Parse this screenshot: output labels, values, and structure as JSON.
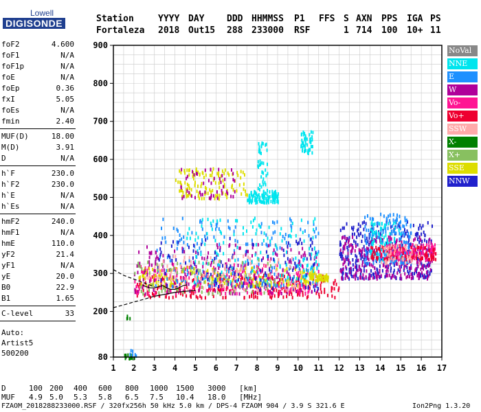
{
  "logo": {
    "top": "Lowell",
    "bottom": "DIGISONDE"
  },
  "header": {
    "row1": [
      "Station",
      "YYYY",
      "DAY",
      "DDD",
      "HHMMSS",
      "P1",
      "FFS",
      "S",
      "AXN",
      "PPS",
      "IGA",
      "PS"
    ],
    "row2": [
      "Fortaleza",
      "2018",
      "Out15",
      "288",
      "233000",
      "RSF",
      "1",
      "714",
      "100",
      "10+",
      "11"
    ]
  },
  "params": [
    [
      {
        "name": "foF2",
        "value": "4.600"
      },
      {
        "name": "foF1",
        "value": "N/A"
      },
      {
        "name": "foF1p",
        "value": "N/A"
      },
      {
        "name": "foE",
        "value": "N/A"
      },
      {
        "name": "foEp",
        "value": "0.36"
      },
      {
        "name": "fxI",
        "value": "5.05"
      },
      {
        "name": "foEs",
        "value": "N/A"
      },
      {
        "name": "fmin",
        "value": "2.40"
      }
    ],
    [
      {
        "name": "MUF(D)",
        "value": "18.00"
      },
      {
        "name": "M(D)",
        "value": "3.91"
      },
      {
        "name": "D",
        "value": "N/A"
      }
    ],
    [
      {
        "name": "h`F",
        "value": "230.0"
      },
      {
        "name": "h`F2",
        "value": "230.0"
      },
      {
        "name": "h`E",
        "value": "N/A"
      },
      {
        "name": "h`Es",
        "value": "N/A"
      }
    ],
    [
      {
        "name": "hmF2",
        "value": "240.0"
      },
      {
        "name": "hmF1",
        "value": "N/A"
      },
      {
        "name": "hmE",
        "value": "110.0"
      },
      {
        "name": "yF2",
        "value": "21.4"
      },
      {
        "name": "yF1",
        "value": "N/A"
      },
      {
        "name": "yE",
        "value": "20.0"
      },
      {
        "name": "B0",
        "value": "22.9"
      },
      {
        "name": "B1",
        "value": "1.65"
      }
    ],
    [
      {
        "name": "C-level",
        "value": "33"
      }
    ]
  ],
  "auto": [
    "Auto:",
    "Artist5",
    "500200"
  ],
  "legend": [
    {
      "label": "NoVal",
      "color": "#888888"
    },
    {
      "label": "NNE",
      "color": "#00e5ee"
    },
    {
      "label": "E",
      "color": "#1e90ff"
    },
    {
      "label": "W",
      "color": "#b0009a"
    },
    {
      "label": "Vo-",
      "color": "#ff1493"
    },
    {
      "label": "Vo+",
      "color": "#ee0030"
    },
    {
      "label": "SSW",
      "color": "#ffaaaa"
    },
    {
      "label": "X-",
      "color": "#008000"
    },
    {
      "label": "X+",
      "color": "#88c060"
    },
    {
      "label": "SSE",
      "color": "#dddd00"
    },
    {
      "label": "NNW",
      "color": "#2020cc"
    }
  ],
  "footer": {
    "d_label": "D",
    "d_values": [
      "100",
      "200",
      "400",
      "600",
      "800",
      "1000",
      "1500",
      "3000",
      "[km]"
    ],
    "muf_label": "MUF",
    "muf_values": [
      "4.9",
      "5.0",
      "5.3",
      "5.8",
      "6.5",
      "7.5",
      "10.4",
      "18.0",
      "[MHz]"
    ],
    "info": "FZAOM_2018288233000.RSF / 320fx256h 50 kHz 5.0 km / DPS-4 FZAOM 904 / 3.9 S 321.6 E",
    "version": "Ion2Png 1.3.20"
  },
  "chart_data": {
    "type": "scatter",
    "title": "",
    "xlabel": "",
    "ylabel": "",
    "xlim": [
      1,
      17
    ],
    "ylim": [
      80,
      900
    ],
    "xticks": [
      1,
      2,
      3,
      4,
      5,
      6,
      7,
      8,
      9,
      10,
      11,
      12,
      13,
      14,
      15,
      16,
      17
    ],
    "yticks": [
      80,
      200,
      300,
      400,
      500,
      600,
      700,
      800,
      900
    ],
    "grid": true,
    "clusters": [
      {
        "series": "Vo+",
        "x": [
          2,
          12
        ],
        "y": [
          240,
          300
        ],
        "n": 260
      },
      {
        "series": "Vo-",
        "x": [
          2,
          11
        ],
        "y": [
          250,
          330
        ],
        "n": 220
      },
      {
        "series": "SSE",
        "x": [
          2.2,
          11
        ],
        "y": [
          270,
          320
        ],
        "n": 200
      },
      {
        "series": "E",
        "x": [
          3,
          11
        ],
        "y": [
          270,
          450
        ],
        "n": 220
      },
      {
        "series": "W",
        "x": [
          2,
          11
        ],
        "y": [
          250,
          380
        ],
        "n": 200
      },
      {
        "series": "NNE",
        "x": [
          4.5,
          11
        ],
        "y": [
          280,
          450
        ],
        "n": 140
      },
      {
        "series": "NNW",
        "x": [
          3,
          11
        ],
        "y": [
          260,
          400
        ],
        "n": 120
      },
      {
        "series": "SSW",
        "x": [
          2.5,
          10
        ],
        "y": [
          260,
          350
        ],
        "n": 100
      },
      {
        "series": "X+",
        "x": [
          2,
          9
        ],
        "y": [
          250,
          340
        ],
        "n": 80
      },
      {
        "series": "SSE",
        "x": [
          4,
          7.5
        ],
        "y": [
          500,
          580
        ],
        "n": 120
      },
      {
        "series": "W",
        "x": [
          4,
          7
        ],
        "y": [
          500,
          580
        ],
        "n": 50
      },
      {
        "series": "NNE",
        "x": [
          7.5,
          9
        ],
        "y": [
          490,
          520
        ],
        "n": 110
      },
      {
        "series": "NNE",
        "x": [
          8,
          8.5
        ],
        "y": [
          520,
          650
        ],
        "n": 40
      },
      {
        "series": "NNE",
        "x": [
          10.1,
          10.7
        ],
        "y": [
          620,
          680
        ],
        "n": 50
      },
      {
        "series": "NNW",
        "x": [
          12,
          16.5
        ],
        "y": [
          290,
          440
        ],
        "n": 360
      },
      {
        "series": "W",
        "x": [
          12,
          16.5
        ],
        "y": [
          290,
          400
        ],
        "n": 260
      },
      {
        "series": "E",
        "x": [
          13.2,
          15.5
        ],
        "y": [
          330,
          460
        ],
        "n": 180
      },
      {
        "series": "NNE",
        "x": [
          13.5,
          15
        ],
        "y": [
          340,
          440
        ],
        "n": 90
      },
      {
        "series": "Vo-",
        "x": [
          14,
          16.7
        ],
        "y": [
          340,
          380
        ],
        "n": 120
      },
      {
        "series": "Vo+",
        "x": [
          13.5,
          16.7
        ],
        "y": [
          340,
          375
        ],
        "n": 100
      },
      {
        "series": "SSW",
        "x": [
          14,
          16
        ],
        "y": [
          330,
          380
        ],
        "n": 50
      },
      {
        "series": "SSE",
        "x": [
          10.5,
          11.5
        ],
        "y": [
          285,
          300
        ],
        "n": 50
      },
      {
        "series": "X-",
        "x": [
          1.5,
          2
        ],
        "y": [
          80,
          90
        ],
        "n": 12
      },
      {
        "series": "E",
        "x": [
          1.7,
          2.1
        ],
        "y": [
          85,
          105
        ],
        "n": 6
      },
      {
        "series": "X-",
        "x": [
          1.6,
          1.8
        ],
        "y": [
          185,
          195
        ],
        "n": 4
      }
    ],
    "traces": [
      {
        "name": "dashed-upper",
        "style": "dashed",
        "x": [
          1,
          1.5,
          2,
          2.5,
          3
        ],
        "y": [
          310,
          295,
          285,
          275,
          265
        ]
      },
      {
        "name": "dashed-lower",
        "style": "dashed",
        "x": [
          1,
          1.5,
          2,
          2.5,
          3
        ],
        "y": [
          210,
          217,
          225,
          232,
          240
        ]
      },
      {
        "name": "solid-lower",
        "style": "solid",
        "x": [
          3,
          3.5,
          4,
          4.5,
          5
        ],
        "y": [
          240,
          245,
          250,
          253,
          255
        ]
      },
      {
        "name": "profile",
        "style": "solid",
        "x": [
          2.4,
          2.6,
          2.8,
          3,
          3.2,
          3.4,
          3.6,
          3.8,
          4,
          4.2,
          4.4,
          4.6
        ],
        "y": [
          270,
          265,
          262,
          262,
          265,
          268,
          262,
          258,
          258,
          262,
          268,
          270
        ]
      }
    ]
  }
}
